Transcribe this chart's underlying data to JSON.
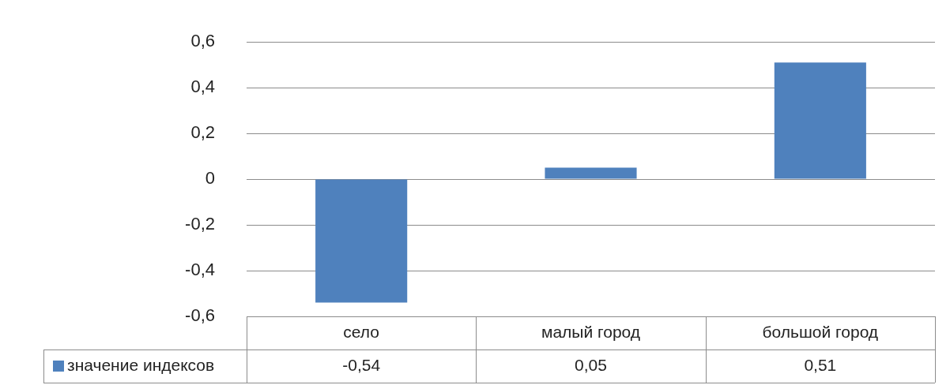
{
  "chart_data": {
    "type": "bar",
    "categories": [
      "село",
      "малый город",
      "большой город"
    ],
    "series": [
      {
        "name": "значение индексов",
        "color": "#4f81bd",
        "values": [
          -0.54,
          0.05,
          0.51
        ],
        "value_labels": [
          "-0,54",
          "0,05",
          "0,51"
        ]
      }
    ],
    "ylim": [
      -0.6,
      0.6
    ],
    "yticks": [
      {
        "value": -0.6,
        "label": "-0,6"
      },
      {
        "value": -0.4,
        "label": "-0,4"
      },
      {
        "value": -0.2,
        "label": "-0,2"
      },
      {
        "value": 0,
        "label": "0"
      },
      {
        "value": 0.2,
        "label": "0,2"
      },
      {
        "value": 0.4,
        "label": "0,4"
      },
      {
        "value": 0.6,
        "label": "0,6"
      }
    ],
    "grid": "y",
    "legend": "bottom"
  }
}
